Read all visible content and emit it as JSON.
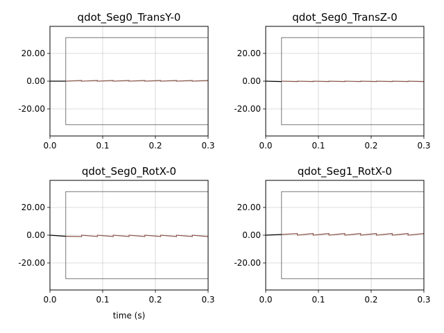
{
  "figure": {
    "xlabel": "time (s)"
  },
  "chart_data": [
    {
      "type": "line",
      "title": "qdot_Seg0_TransY-0",
      "xlim": [
        0,
        0.3
      ],
      "ylim": [
        -39.5,
        39.5
      ],
      "xticks": [
        0,
        0.1,
        0.2,
        0.3
      ],
      "xtick_labels": [
        "0.0",
        "0.1",
        "0.2",
        "0.3"
      ],
      "yticks": [
        -20,
        0,
        20
      ],
      "ytick_labels": [
        "-20.00",
        "0.00",
        "20.00"
      ],
      "grid": true,
      "bounds_box": {
        "x": [
          0.03,
          0.3
        ],
        "y": [
          -31.4,
          31.4
        ],
        "color": "#555555"
      },
      "series": [
        {
          "color": "#000000",
          "x": [
            0,
            0.03
          ],
          "y": [
            0,
            0
          ]
        },
        {
          "color": "#8c564b",
          "x": [
            0.03,
            0.06,
            0.06,
            0.09,
            0.09,
            0.12,
            0.12,
            0.15,
            0.15,
            0.18,
            0.18,
            0.21,
            0.21,
            0.24,
            0.24,
            0.27,
            0.27,
            0.3
          ],
          "y": [
            0,
            0.5,
            0,
            0.5,
            0,
            0.5,
            0,
            0.5,
            0,
            0.5,
            0,
            0.5,
            0,
            0.5,
            0,
            0.5,
            0,
            0.5
          ]
        }
      ]
    },
    {
      "type": "line",
      "title": "qdot_Seg0_TransZ-0",
      "xlim": [
        0,
        0.3
      ],
      "ylim": [
        -39.5,
        39.5
      ],
      "xticks": [
        0,
        0.1,
        0.2,
        0.3
      ],
      "xtick_labels": [
        "0.0",
        "0.1",
        "0.2",
        "0.3"
      ],
      "yticks": [
        -20,
        0,
        20
      ],
      "ytick_labels": [
        "-20.00",
        "0.00",
        "20.00"
      ],
      "grid": true,
      "bounds_box": {
        "x": [
          0.03,
          0.3
        ],
        "y": [
          -31.4,
          31.4
        ],
        "color": "#555555"
      },
      "series": [
        {
          "color": "#000000",
          "x": [
            0,
            0.03
          ],
          "y": [
            0,
            -0.3
          ]
        },
        {
          "color": "#8c564b",
          "x": [
            0.03,
            0.06,
            0.06,
            0.09,
            0.09,
            0.12,
            0.12,
            0.15,
            0.15,
            0.18,
            0.18,
            0.21,
            0.21,
            0.24,
            0.24,
            0.27,
            0.27,
            0.3
          ],
          "y": [
            0,
            -0.3,
            0,
            -0.3,
            0,
            -0.3,
            0,
            -0.3,
            0,
            -0.3,
            0,
            -0.3,
            0,
            -0.3,
            0,
            -0.3,
            0,
            -0.3
          ]
        }
      ]
    },
    {
      "type": "line",
      "title": "qdot_Seg0_RotX-0",
      "xlim": [
        0,
        0.3
      ],
      "ylim": [
        -39.5,
        39.5
      ],
      "xticks": [
        0,
        0.1,
        0.2,
        0.3
      ],
      "xtick_labels": [
        "0.0",
        "0.1",
        "0.2",
        "0.3"
      ],
      "yticks": [
        -20,
        0,
        20
      ],
      "ytick_labels": [
        "-20.00",
        "0.00",
        "20.00"
      ],
      "grid": true,
      "bounds_box": {
        "x": [
          0.03,
          0.3
        ],
        "y": [
          -31.4,
          31.4
        ],
        "color": "#555555"
      },
      "series": [
        {
          "color": "#000000",
          "x": [
            0,
            0.03
          ],
          "y": [
            0,
            -0.8
          ]
        },
        {
          "color": "#8c564b",
          "x": [
            0.03,
            0.06,
            0.06,
            0.09,
            0.09,
            0.12,
            0.12,
            0.15,
            0.15,
            0.18,
            0.18,
            0.21,
            0.21,
            0.24,
            0.24,
            0.27,
            0.27,
            0.3
          ],
          "y": [
            -0.8,
            -1.0,
            0,
            -1.0,
            0,
            -1.0,
            0,
            -1.0,
            0,
            -1.0,
            0,
            -1.0,
            0,
            -1.0,
            0,
            -1.0,
            0,
            -1.0
          ]
        }
      ]
    },
    {
      "type": "line",
      "title": "qdot_Seg1_RotX-0",
      "xlim": [
        0,
        0.3
      ],
      "ylim": [
        -39.5,
        39.5
      ],
      "xticks": [
        0,
        0.1,
        0.2,
        0.3
      ],
      "xtick_labels": [
        "0.0",
        "0.1",
        "0.2",
        "0.3"
      ],
      "yticks": [
        -20,
        0,
        20
      ],
      "ytick_labels": [
        "-20.00",
        "0.00",
        "20.00"
      ],
      "grid": true,
      "bounds_box": {
        "x": [
          0.03,
          0.3
        ],
        "y": [
          -31.4,
          31.4
        ],
        "color": "#555555"
      },
      "series": [
        {
          "color": "#000000",
          "x": [
            0,
            0.03
          ],
          "y": [
            0,
            0.5
          ]
        },
        {
          "color": "#8c564b",
          "x": [
            0.03,
            0.06,
            0.06,
            0.09,
            0.09,
            0.12,
            0.12,
            0.15,
            0.15,
            0.18,
            0.18,
            0.21,
            0.21,
            0.24,
            0.24,
            0.27,
            0.27,
            0.3
          ],
          "y": [
            0.5,
            1.2,
            0,
            1.2,
            0,
            1.2,
            0,
            1.2,
            0,
            1.2,
            0,
            1.2,
            0,
            1.2,
            0,
            1.2,
            0,
            1.2
          ]
        }
      ]
    }
  ]
}
